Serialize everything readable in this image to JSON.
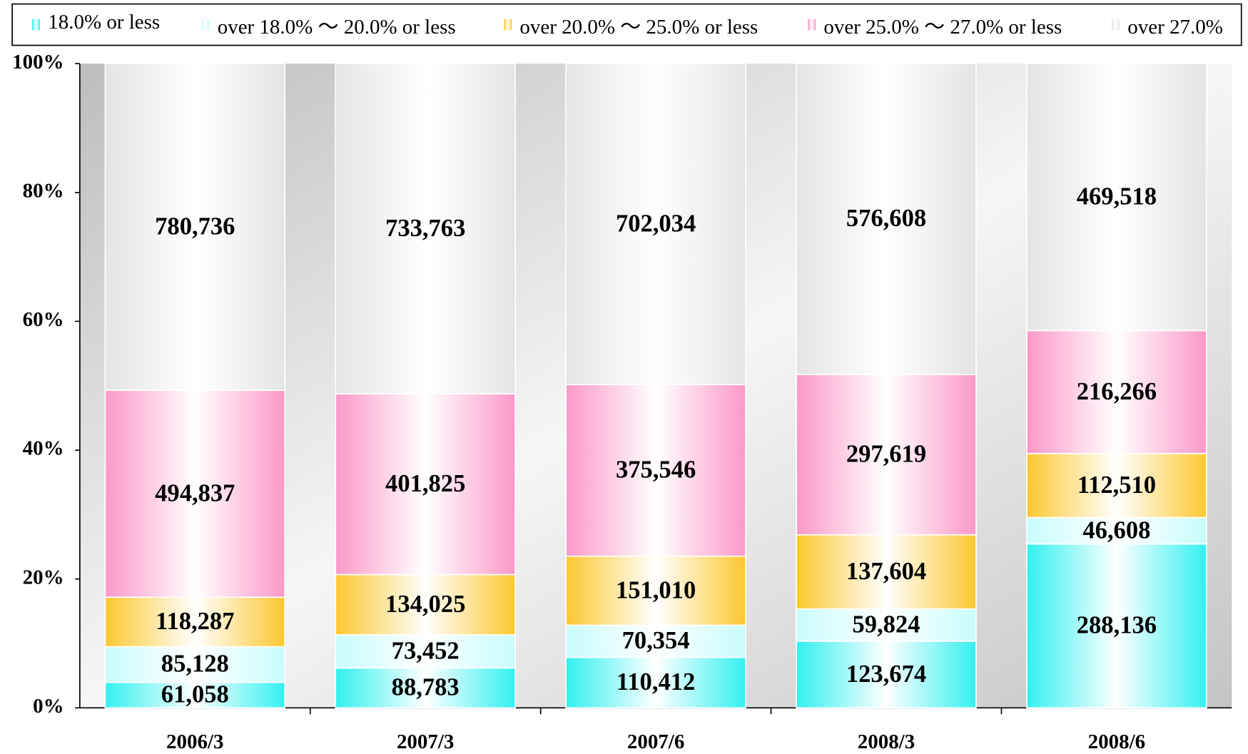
{
  "chart_data": {
    "type": "bar",
    "stacking": "percent",
    "categories": [
      "2006/3",
      "2007/3",
      "2007/6",
      "2008/3",
      "2008/6"
    ],
    "series": [
      {
        "name": "18.0% or less",
        "color": "#33f0f0",
        "values": [
          61058,
          88783,
          110412,
          123674,
          288136
        ],
        "value_labels": [
          "61,058",
          "88,783",
          "110,412",
          "123,674",
          "288,136"
        ]
      },
      {
        "name": "over 18.0% ～ 20.0% or less",
        "color": "#c8fcfc",
        "values": [
          85128,
          73452,
          70354,
          59824,
          46608
        ],
        "value_labels": [
          "85,128",
          "73,452",
          "70,354",
          "59,824",
          "46,608"
        ]
      },
      {
        "name": "over 20.0% ～ 25.0% or less",
        "color": "#fcc830",
        "values": [
          118287,
          134025,
          151010,
          137604,
          112510
        ],
        "value_labels": [
          "118,287",
          "134,025",
          "151,010",
          "137,604",
          "112,510"
        ]
      },
      {
        "name": "over 25.0% ～ 27.0% or less",
        "color": "#fc98c8",
        "values": [
          494837,
          401825,
          375546,
          297619,
          216266
        ],
        "value_labels": [
          "494,837",
          "401,825",
          "375,546",
          "297,619",
          "216,266"
        ]
      },
      {
        "name": "over 27.0%",
        "color": "#e4e4e4",
        "values": [
          780736,
          733763,
          702034,
          576608,
          469518
        ],
        "value_labels": [
          "780,736",
          "733,763",
          "702,034",
          "576,608",
          "469,518"
        ]
      }
    ],
    "ylim": [
      0,
      100
    ],
    "yticks": [
      {
        "value": 0,
        "label": "0%"
      },
      {
        "value": 20,
        "label": "20%"
      },
      {
        "value": 40,
        "label": "40%"
      },
      {
        "value": 60,
        "label": "60%"
      },
      {
        "value": 80,
        "label": "80%"
      },
      {
        "value": 100,
        "label": "100%"
      }
    ],
    "legend": "top"
  }
}
